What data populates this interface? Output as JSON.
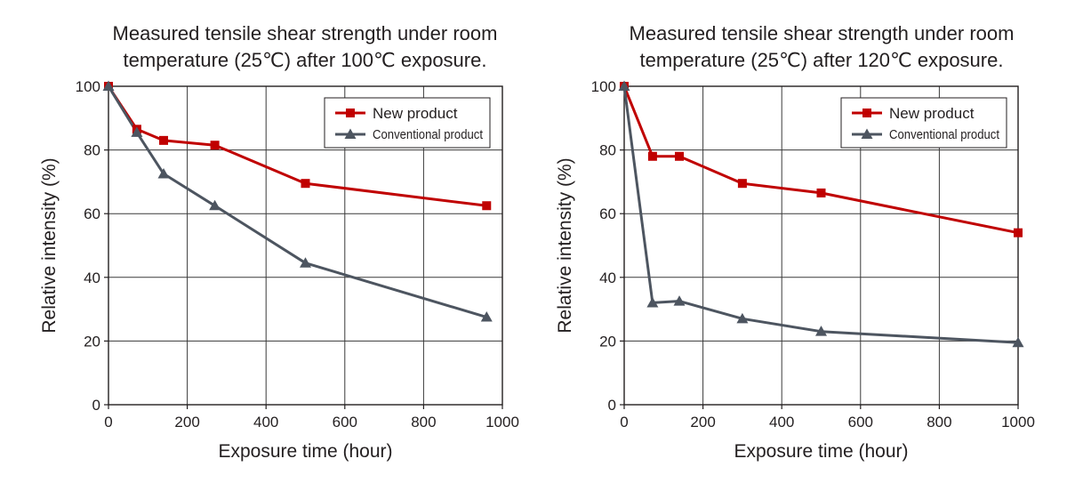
{
  "chart_data": [
    {
      "type": "line",
      "title": "Measured tensile shear strength under room",
      "subtitle": "temperature (25℃) after 100℃ exposure.",
      "xlabel": "Exposure time (hour)",
      "ylabel": "Relative intensity (%)",
      "xlim": [
        0,
        1000
      ],
      "ylim": [
        0,
        100
      ],
      "xticks": [
        0,
        200,
        400,
        600,
        800,
        1000
      ],
      "yticks": [
        0,
        20,
        40,
        60,
        80,
        100
      ],
      "grid": true,
      "legend_position": "top-right",
      "series": [
        {
          "name": "New product",
          "color": "#c00000",
          "marker": "square",
          "x": [
            0,
            72,
            140,
            270,
            500,
            960
          ],
          "y": [
            100,
            86.5,
            83,
            81.5,
            69.5,
            62.5
          ]
        },
        {
          "name": "Conventional product",
          "color": "#4d5560",
          "marker": "triangle",
          "x": [
            0,
            72,
            140,
            270,
            500,
            960
          ],
          "y": [
            100,
            85.5,
            72.5,
            62.5,
            44.5,
            27.5
          ]
        }
      ]
    },
    {
      "type": "line",
      "title": "Measured tensile shear strength under room",
      "subtitle": "temperature (25℃) after 120℃ exposure.",
      "xlabel": "Exposure time (hour)",
      "ylabel": "Relative intensity (%)",
      "xlim": [
        0,
        1000
      ],
      "ylim": [
        0,
        100
      ],
      "xticks": [
        0,
        200,
        400,
        600,
        800,
        1000
      ],
      "yticks": [
        0,
        20,
        40,
        60,
        80,
        100
      ],
      "grid": true,
      "legend_position": "top-right",
      "series": [
        {
          "name": "New product",
          "color": "#c00000",
          "marker": "square",
          "x": [
            0,
            72,
            140,
            300,
            500,
            1000
          ],
          "y": [
            100,
            78,
            78,
            69.5,
            66.5,
            54
          ]
        },
        {
          "name": "Conventional product",
          "color": "#4d5560",
          "marker": "triangle",
          "x": [
            0,
            72,
            140,
            300,
            500,
            1000
          ],
          "y": [
            100,
            32,
            32.5,
            27,
            23,
            19.5
          ]
        }
      ]
    }
  ]
}
